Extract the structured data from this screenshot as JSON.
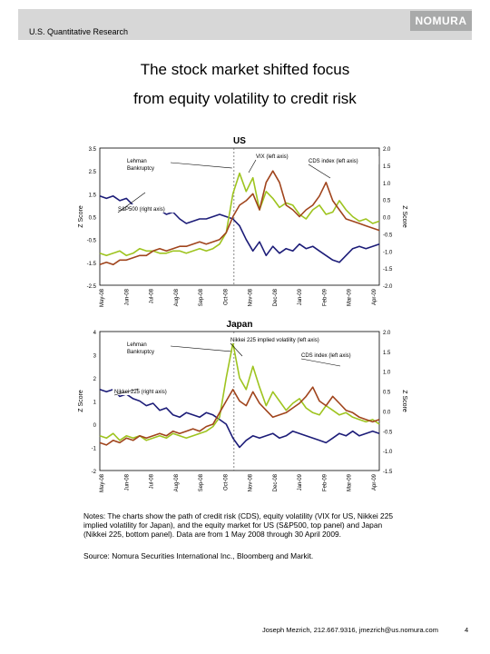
{
  "header": {
    "title": "U.S. Quantitative Research",
    "logo_text": "NOMURA"
  },
  "page_title": {
    "line1": "The stock market shifted focus",
    "line2": "from equity volatility to credit risk"
  },
  "colors": {
    "header_bar": "#d7d7d7",
    "logo_bg": "#a9aaaa",
    "navy": "#1c1c78",
    "green": "#9ec41f",
    "brown": "#a0441c"
  },
  "chart_data": [
    {
      "type": "line",
      "title": "US",
      "ylabel": "Z Score",
      "ylabel_right": "Z Score",
      "ylim": [
        -2.5,
        3.5
      ],
      "ylim_right": [
        -2.0,
        2.0
      ],
      "yticks": [
        "3.5",
        "2.5",
        "1.5",
        "0.5",
        "-0.5",
        "-1.5",
        "-2.5"
      ],
      "yticks_right": [
        "2.0",
        "1.5",
        "1.0",
        "0.5",
        "0.0",
        "-0.5",
        "-1.0",
        "-1.5",
        "-2.0"
      ],
      "x_labels": [
        "May-08",
        "Jun-08",
        "Jul-08",
        "Aug-08",
        "Sep-08",
        "Oct-08",
        "Nov-08",
        "Dec-08",
        "Jan-09",
        "Feb-09",
        "Mar-09",
        "Apr-09"
      ],
      "event_label": "Lehman\nBankruptcy",
      "annotations": [
        "VIX (left axis)",
        "CDS index (left axis)",
        "S&P500 (right axis)"
      ],
      "series": [
        {
          "values": [
            1.4,
            1.3,
            1.4,
            1.2,
            1.3,
            1.0,
            1.0,
            0.9,
            0.8,
            0.8,
            0.6,
            0.7,
            0.4,
            0.2,
            0.3,
            0.4,
            0.4,
            0.5,
            0.6,
            0.5,
            0.4,
            0.1,
            -0.5,
            -1.0,
            -0.6,
            -1.2,
            -0.8,
            -1.1,
            -0.9,
            -1.0,
            -0.7,
            -0.9,
            -0.8,
            -1.0,
            -1.2,
            -1.4,
            -1.5,
            -1.2,
            -0.9,
            -0.8,
            -0.9,
            -0.8,
            -0.7
          ]
        },
        {
          "values": [
            -1.1,
            -1.2,
            -1.1,
            -1.0,
            -1.2,
            -1.1,
            -0.9,
            -1.0,
            -1.0,
            -1.1,
            -1.1,
            -1.0,
            -1.0,
            -1.1,
            -1.0,
            -0.9,
            -1.0,
            -0.9,
            -0.7,
            -0.2,
            1.5,
            2.4,
            1.6,
            2.2,
            0.8,
            1.6,
            1.3,
            0.9,
            1.1,
            1.0,
            0.6,
            0.4,
            0.8,
            1.0,
            0.6,
            0.7,
            1.2,
            0.8,
            0.5,
            0.3,
            0.4,
            0.2,
            0.3
          ]
        },
        {
          "values": [
            -1.6,
            -1.5,
            -1.6,
            -1.4,
            -1.4,
            -1.3,
            -1.2,
            -1.2,
            -1.0,
            -0.9,
            -1.0,
            -0.9,
            -0.8,
            -0.8,
            -0.7,
            -0.6,
            -0.7,
            -0.6,
            -0.5,
            -0.2,
            0.5,
            1.0,
            1.2,
            1.5,
            0.8,
            2.0,
            2.5,
            2.0,
            1.0,
            0.8,
            0.5,
            0.8,
            1.0,
            1.4,
            2.0,
            1.2,
            0.8,
            0.4,
            0.3,
            0.2,
            0.1,
            0.0,
            -0.1
          ]
        }
      ]
    },
    {
      "type": "line",
      "title": "Japan",
      "ylabel": "Z Score",
      "ylabel_right": "Z Score",
      "ylim": [
        -2,
        4
      ],
      "ylim_right": [
        -1.5,
        2.0
      ],
      "yticks": [
        "4",
        "3",
        "2",
        "1",
        "0",
        "-1",
        "-2"
      ],
      "yticks_right": [
        "2.0",
        "1.5",
        "1.0",
        "0.5",
        "0.0",
        "-0.5",
        "-1.0",
        "-1.5"
      ],
      "x_labels": [
        "May-08",
        "Jun-08",
        "Jul-08",
        "Aug-08",
        "Sep-08",
        "Oct-08",
        "Nov-08",
        "Dec-08",
        "Jan-09",
        "Feb-09",
        "Mar-09",
        "Apr-09"
      ],
      "event_label": "Lehman\nBankruptcy",
      "annotations": [
        "Nikkei 225 implied volatility (left axis)",
        "CDS index (left axis)",
        "Nikkei 225 (right axis)"
      ],
      "series": [
        {
          "values": [
            1.5,
            1.4,
            1.5,
            1.2,
            1.3,
            1.1,
            1.0,
            0.8,
            0.9,
            0.6,
            0.7,
            0.4,
            0.3,
            0.5,
            0.4,
            0.3,
            0.5,
            0.4,
            0.2,
            0.0,
            -0.6,
            -1.0,
            -0.7,
            -0.5,
            -0.6,
            -0.5,
            -0.4,
            -0.6,
            -0.5,
            -0.3,
            -0.4,
            -0.5,
            -0.6,
            -0.7,
            -0.8,
            -0.6,
            -0.4,
            -0.5,
            -0.3,
            -0.5,
            -0.4,
            -0.3,
            -0.4
          ]
        },
        {
          "values": [
            -0.5,
            -0.6,
            -0.4,
            -0.7,
            -0.5,
            -0.6,
            -0.5,
            -0.7,
            -0.6,
            -0.5,
            -0.6,
            -0.4,
            -0.5,
            -0.6,
            -0.5,
            -0.4,
            -0.3,
            -0.1,
            0.3,
            2.0,
            3.5,
            2.0,
            1.5,
            2.5,
            1.6,
            0.8,
            1.4,
            1.0,
            0.6,
            0.9,
            1.1,
            0.7,
            0.5,
            0.4,
            0.8,
            0.6,
            0.4,
            0.5,
            0.3,
            0.2,
            0.1,
            0.2,
            0.0
          ]
        },
        {
          "values": [
            -0.8,
            -0.9,
            -0.7,
            -0.8,
            -0.6,
            -0.7,
            -0.5,
            -0.6,
            -0.5,
            -0.4,
            -0.5,
            -0.3,
            -0.4,
            -0.3,
            -0.2,
            -0.3,
            -0.1,
            0.0,
            0.5,
            1.0,
            1.5,
            1.0,
            0.8,
            1.4,
            0.9,
            0.6,
            0.3,
            0.4,
            0.5,
            0.7,
            0.9,
            1.2,
            1.6,
            1.0,
            0.8,
            1.2,
            0.9,
            0.6,
            0.5,
            0.3,
            0.2,
            0.1,
            0.2
          ]
        }
      ]
    }
  ],
  "notes": "Notes: The charts show the path of credit risk (CDS), equity volatility (VIX for US, Nikkei 225 implied volatility for Japan), and the equity market for US (S&P500, top panel) and Japan (Nikkei 225, bottom panel). Data are from 1 May 2008 through 30 April 2009.",
  "source": "Source: Nomura Securities International Inc., Bloomberg and Markit.",
  "footer": {
    "contact": "Joseph Mezrich, 212.667.9316, jmezrich@us.nomura.com",
    "page_number": "4"
  }
}
